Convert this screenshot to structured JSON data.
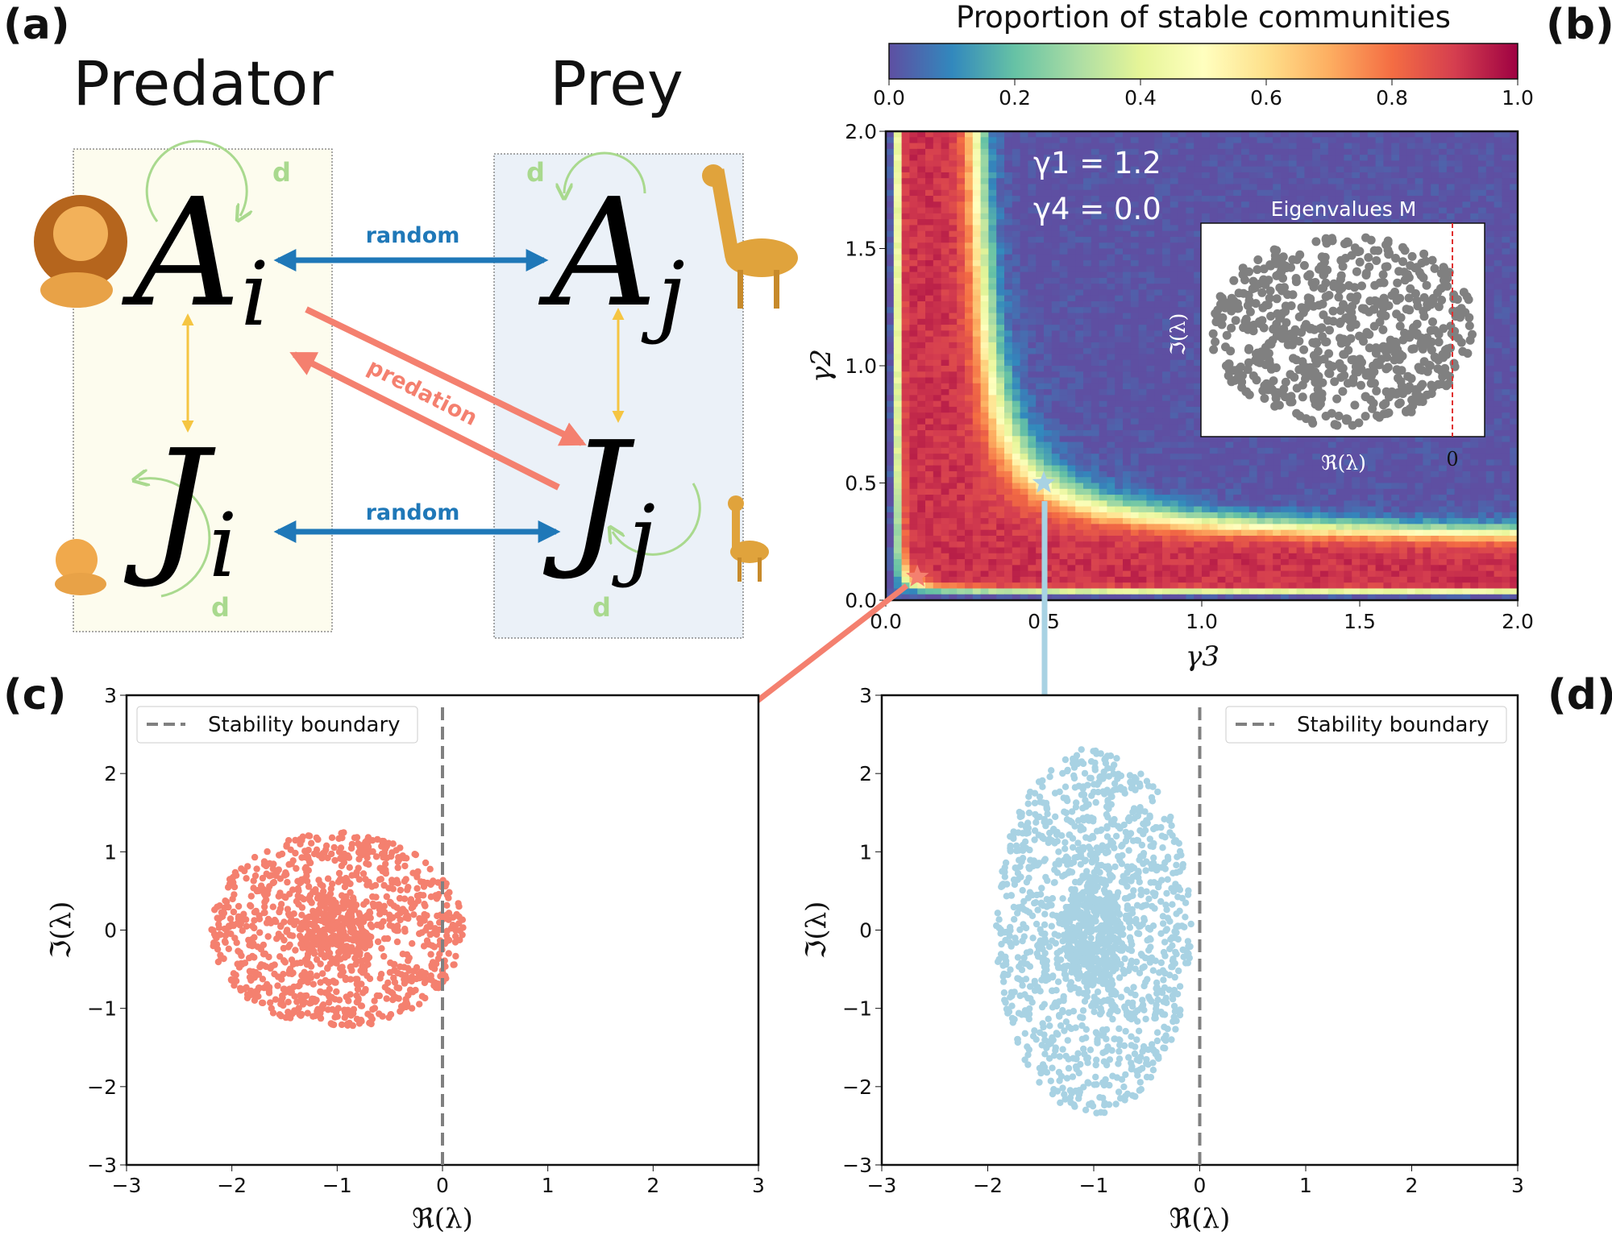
{
  "panel_labels": {
    "a": "(a)",
    "b": "(b)",
    "c": "(c)",
    "d": "(d)"
  },
  "diagram": {
    "predator_title": "Predator",
    "prey_title": "Prey",
    "nodes": {
      "Ai": {
        "base": "A",
        "sub": "i"
      },
      "Aj": {
        "base": "A",
        "sub": "j"
      },
      "Ji": {
        "base": "J",
        "sub": "i"
      },
      "Jj": {
        "base": "J",
        "sub": "j"
      }
    },
    "random_top": "random",
    "random_bottom": "random",
    "predation": "predation",
    "self_loop_label": "d",
    "colors": {
      "random": "#1f78b8",
      "predation": "#f4806f",
      "stage": "#f5c542",
      "self_loop": "#a9d98e",
      "predator_box": "#fdfcee",
      "prey_box": "#ebf1f8"
    }
  },
  "chart_data": [
    {
      "type": "heatmap",
      "title": "Proportion of stable communities",
      "xlabel": "γ3",
      "ylabel": "γ2",
      "xlim": [
        0,
        2
      ],
      "ylim": [
        0,
        2
      ],
      "xticks": [
        "0.0",
        "0.5",
        "1.0",
        "1.5",
        "2.0"
      ],
      "yticks": [
        "0.0",
        "0.5",
        "1.0",
        "1.5",
        "2.0"
      ],
      "colorbar": {
        "ticks": [
          "0.0",
          "0.2",
          "0.4",
          "0.6",
          "0.8",
          "1.0"
        ],
        "range": [
          0,
          1
        ],
        "colormap": "Spectral_r"
      },
      "grid": [
        80,
        80
      ],
      "model": "stable band along 2*γ2*γ3/(γ2+γ3) between ~0.07 and ~0.5",
      "annotations": {
        "gamma1": "γ1 = 1.2",
        "gamma4": "γ4 = 0.0"
      },
      "markers": [
        {
          "name": "red-star",
          "x": 0.1,
          "y": 0.1,
          "color": "#f4806f"
        },
        {
          "name": "blue-star",
          "x": 0.5,
          "y": 0.5,
          "color": "#a8d2e3"
        }
      ],
      "inset": {
        "title": "Eigenvalues M",
        "xlabel": "ℜ(λ)",
        "ylabel": "ℑ(λ)",
        "xtick": "0",
        "color": "#808080",
        "boundary_color": "#e03030"
      }
    },
    {
      "type": "scatter",
      "panel": "c",
      "xlabel": "ℜ(λ)",
      "ylabel": "ℑ(λ)",
      "xlim": [
        -3,
        3
      ],
      "ylim": [
        -3,
        3
      ],
      "ticks": [
        "−3",
        "−2",
        "−1",
        "0",
        "1",
        "2",
        "3"
      ],
      "legend": "Stability boundary",
      "legend_position": "top-left",
      "boundary_x": 0,
      "cloud": {
        "center": [
          -1,
          0
        ],
        "rx": 1.2,
        "ry": 1.25,
        "count": 1200
      },
      "color": "#f4806f"
    },
    {
      "type": "scatter",
      "panel": "d",
      "xlabel": "ℜ(λ)",
      "ylabel": "ℑ(λ)",
      "xlim": [
        -3,
        3
      ],
      "ylim": [
        -3,
        3
      ],
      "ticks": [
        "−3",
        "−2",
        "−1",
        "0",
        "1",
        "2",
        "3"
      ],
      "legend": "Stability boundary",
      "legend_position": "top-right",
      "boundary_x": 0,
      "cloud": {
        "center": [
          -1,
          0
        ],
        "rx": 0.92,
        "ry": 2.35,
        "count": 1600
      },
      "color": "#a8d2e3"
    }
  ]
}
